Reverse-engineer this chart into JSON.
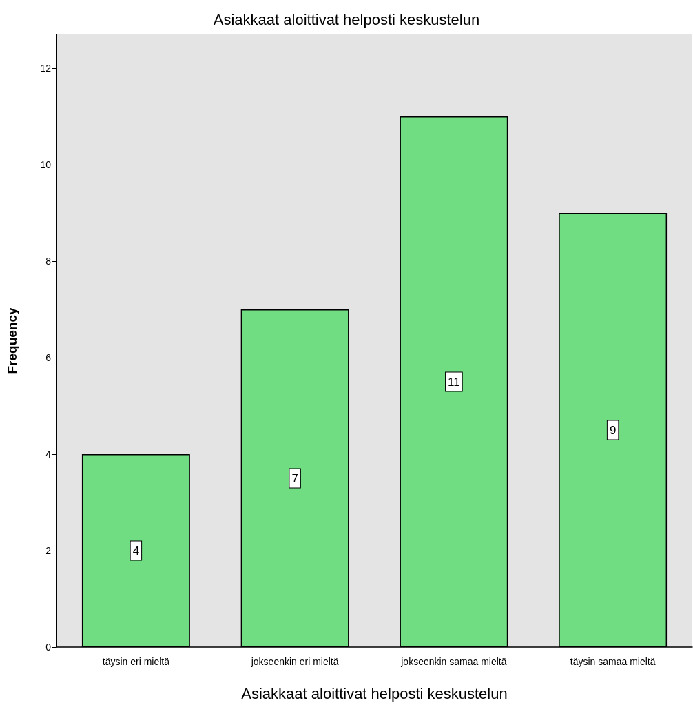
{
  "chart_data": {
    "type": "bar",
    "title": "Asiakkaat aloittivat helposti keskustelun",
    "xlabel": "Asiakkaat aloittivat helposti keskustelun",
    "ylabel": "Frequency",
    "categories": [
      "täysin eri mieltä",
      "jokseenkin eri mieltä",
      "jokseenkin samaa mieltä",
      "täysin samaa mieltä"
    ],
    "values": [
      4,
      7,
      11,
      9
    ],
    "color": "#70dd82",
    "ylim": [
      0,
      12.7
    ],
    "yticks": [
      0,
      2,
      4,
      6,
      8,
      10,
      12
    ],
    "grid": false,
    "data_labels": true
  }
}
